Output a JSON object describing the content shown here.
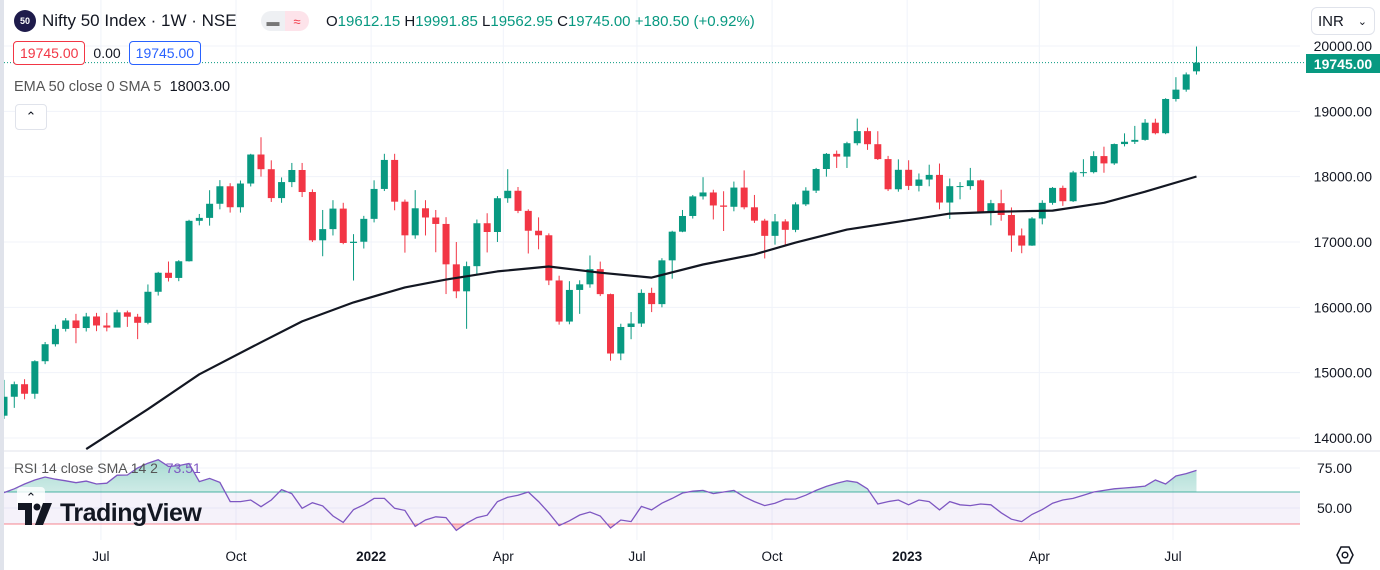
{
  "header": {
    "symbol_badge": "50",
    "title": "Nifty 50 Index · 1W · NSE",
    "ohlc": {
      "o_label": "O",
      "o": "19612.15",
      "h_label": "H",
      "h": "19991.85",
      "l_label": "L",
      "l": "19562.95",
      "c_label": "C",
      "c": "19745.00",
      "change": "+180.50 (+0.92%)"
    },
    "sell_price": "19745.00",
    "spread": "0.00",
    "buy_price": "19745.00",
    "currency": "INR"
  },
  "indicators": {
    "ema_label": "EMA 50 close 0 SMA 5",
    "ema_value": "18003.00",
    "rsi_label": "RSI 14 close SMA 14 2",
    "rsi_value": "73.51"
  },
  "logo_text": "TradingView",
  "last_price_label": "19745.00",
  "colors": {
    "up": "#089981",
    "down": "#f23645",
    "ema": "#131722",
    "rsi": "#7e57c2",
    "rsi_upper": "#089981",
    "rsi_lower": "#f23645"
  },
  "icons": {
    "collapse": "chevron-up-icon",
    "currency_dropdown": "chevron-down-icon",
    "settings": "settings-hexagon-icon"
  },
  "chart_data": {
    "type": "candlestick",
    "interval": "1W",
    "price_axis": {
      "ticks": [
        "14000.00",
        "15000.00",
        "16000.00",
        "17000.00",
        "18000.00",
        "19000.00",
        "20000.00"
      ],
      "ylim": [
        13900,
        20250
      ]
    },
    "rsi_axis": {
      "ticks": [
        "50.00",
        "75.00"
      ],
      "upper_band": 60,
      "lower_band": 40
    },
    "time_axis": [
      {
        "label": "Jul",
        "date": "2021-07-01"
      },
      {
        "label": "Oct",
        "date": "2021-10-01"
      },
      {
        "label": "2022",
        "date": "2022-01-01"
      },
      {
        "label": "Apr",
        "date": "2022-04-01"
      },
      {
        "label": "Jul",
        "date": "2022-07-01"
      },
      {
        "label": "Oct",
        "date": "2022-10-01"
      },
      {
        "label": "2023",
        "date": "2023-01-01"
      },
      {
        "label": "Apr",
        "date": "2023-04-01"
      },
      {
        "label": "Jul",
        "date": "2023-07-01"
      }
    ],
    "candles_fields": [
      "week",
      "open",
      "high",
      "low",
      "close"
    ],
    "candles": [
      [
        "2021-04-26",
        14341,
        14890,
        14292,
        14631
      ],
      [
        "2021-05-03",
        14631,
        14863,
        14461,
        14823
      ],
      [
        "2021-05-10",
        14823,
        14900,
        14592,
        14677
      ],
      [
        "2021-05-17",
        14677,
        15190,
        14600,
        15175
      ],
      [
        "2021-05-24",
        15175,
        15469,
        15130,
        15435
      ],
      [
        "2021-05-31",
        15435,
        15733,
        15400,
        15670
      ],
      [
        "2021-06-07",
        15670,
        15835,
        15630,
        15799
      ],
      [
        "2021-06-14",
        15799,
        15900,
        15450,
        15683
      ],
      [
        "2021-06-21",
        15683,
        15915,
        15630,
        15860
      ],
      [
        "2021-06-28",
        15860,
        15915,
        15635,
        15722
      ],
      [
        "2021-07-05",
        15722,
        15915,
        15632,
        15690
      ],
      [
        "2021-07-12",
        15690,
        15962,
        15700,
        15923
      ],
      [
        "2021-07-19",
        15923,
        15950,
        15700,
        15856
      ],
      [
        "2021-07-26",
        15856,
        15900,
        15513,
        15763
      ],
      [
        "2021-08-02",
        15763,
        16350,
        15740,
        16238
      ],
      [
        "2021-08-09",
        16238,
        16543,
        16180,
        16529
      ],
      [
        "2021-08-16",
        16529,
        16701,
        16395,
        16450
      ],
      [
        "2021-08-23",
        16450,
        16722,
        16400,
        16705
      ],
      [
        "2021-08-30",
        16705,
        17340,
        16700,
        17324
      ],
      [
        "2021-09-06",
        17324,
        17429,
        17255,
        17369
      ],
      [
        "2021-09-13",
        17369,
        17793,
        17250,
        17585
      ],
      [
        "2021-09-20",
        17585,
        17947,
        17500,
        17853
      ],
      [
        "2021-09-27",
        17853,
        17900,
        17450,
        17532
      ],
      [
        "2021-10-04",
        17532,
        17941,
        17450,
        17895
      ],
      [
        "2021-10-11",
        17895,
        18350,
        17850,
        18339
      ],
      [
        "2021-10-18",
        18339,
        18604,
        18000,
        18114
      ],
      [
        "2021-10-25",
        18114,
        18250,
        17613,
        17672
      ],
      [
        "2021-11-01",
        17672,
        17988,
        17600,
        17917
      ],
      [
        "2021-11-08",
        17917,
        18210,
        17840,
        18102
      ],
      [
        "2021-11-15",
        18102,
        18210,
        17688,
        17765
      ],
      [
        "2021-11-22",
        17765,
        17805,
        17000,
        17026
      ],
      [
        "2021-11-29",
        17026,
        17490,
        16782,
        17197
      ],
      [
        "2021-12-06",
        17197,
        17640,
        17100,
        17511
      ],
      [
        "2021-12-13",
        17511,
        17600,
        16966,
        16985
      ],
      [
        "2021-12-20",
        16985,
        17120,
        16410,
        17004
      ],
      [
        "2021-12-27",
        17004,
        17400,
        16900,
        17354
      ],
      [
        "2022-01-03",
        17354,
        17944,
        17300,
        17812
      ],
      [
        "2022-01-10",
        17812,
        18350,
        17780,
        18256
      ],
      [
        "2022-01-17",
        18256,
        18350,
        17485,
        17617
      ],
      [
        "2022-01-24",
        17617,
        17650,
        16837,
        17102
      ],
      [
        "2022-01-31",
        17102,
        17794,
        17050,
        17516
      ],
      [
        "2022-02-07",
        17516,
        17640,
        17100,
        17375
      ],
      [
        "2022-02-14",
        17375,
        17490,
        16843,
        17276
      ],
      [
        "2022-02-21",
        17276,
        17380,
        16203,
        16658
      ],
      [
        "2022-02-28",
        16658,
        17000,
        16140,
        16245
      ],
      [
        "2022-03-07",
        16245,
        16700,
        15671,
        16630
      ],
      [
        "2022-03-14",
        16630,
        17344,
        16500,
        17287
      ],
      [
        "2022-03-21",
        17287,
        17440,
        16840,
        17153
      ],
      [
        "2022-03-28",
        17153,
        17703,
        17000,
        17670
      ],
      [
        "2022-04-04",
        17670,
        18114,
        17600,
        17784
      ],
      [
        "2022-04-11",
        17784,
        17842,
        17442,
        17476
      ],
      [
        "2022-04-18",
        17476,
        17500,
        16824,
        17172
      ],
      [
        "2022-04-25",
        17172,
        17377,
        16888,
        17103
      ],
      [
        "2022-05-02",
        17103,
        17132,
        16340,
        16411
      ],
      [
        "2022-05-09",
        16411,
        16484,
        15735,
        15782
      ],
      [
        "2022-05-16",
        15782,
        16400,
        15740,
        16266
      ],
      [
        "2022-05-23",
        16266,
        16414,
        15900,
        16352
      ],
      [
        "2022-05-30",
        16352,
        16794,
        16300,
        16584
      ],
      [
        "2022-06-06",
        16584,
        16700,
        16172,
        16202
      ],
      [
        "2022-06-13",
        16202,
        16210,
        15183,
        15293
      ],
      [
        "2022-06-20",
        15293,
        15749,
        15191,
        15699
      ],
      [
        "2022-06-27",
        15699,
        15928,
        15512,
        15752
      ],
      [
        "2022-07-04",
        15752,
        16275,
        15700,
        16221
      ],
      [
        "2022-07-11",
        16221,
        16300,
        15927,
        16049
      ],
      [
        "2022-07-18",
        16049,
        16752,
        16000,
        16719
      ],
      [
        "2022-07-25",
        16719,
        17172,
        16438,
        17158
      ],
      [
        "2022-08-01",
        17158,
        17490,
        17150,
        17398
      ],
      [
        "2022-08-08",
        17398,
        17719,
        17359,
        17698
      ],
      [
        "2022-08-15",
        17698,
        17992,
        17650,
        17758
      ],
      [
        "2022-08-22",
        17758,
        17800,
        17345,
        17559
      ],
      [
        "2022-08-29",
        17559,
        17777,
        17168,
        17539
      ],
      [
        "2022-09-05",
        17539,
        17925,
        17470,
        17833
      ],
      [
        "2022-09-12",
        17833,
        18096,
        17500,
        17531
      ],
      [
        "2022-09-19",
        17531,
        17720,
        17292,
        17327
      ],
      [
        "2022-09-26",
        17327,
        17355,
        16748,
        17094
      ],
      [
        "2022-10-03",
        17094,
        17428,
        16960,
        17315
      ],
      [
        "2022-10-10",
        17315,
        17348,
        16950,
        17186
      ],
      [
        "2022-10-17",
        17186,
        17607,
        17150,
        17576
      ],
      [
        "2022-10-24",
        17576,
        17838,
        17550,
        17786
      ],
      [
        "2022-10-31",
        17786,
        18134,
        17750,
        18117
      ],
      [
        "2022-11-07",
        18117,
        18362,
        18000,
        18349
      ],
      [
        "2022-11-14",
        18349,
        18400,
        18133,
        18307
      ],
      [
        "2022-11-21",
        18307,
        18534,
        18133,
        18512
      ],
      [
        "2022-11-28",
        18512,
        18888,
        18480,
        18697
      ],
      [
        "2022-12-05",
        18697,
        18750,
        18410,
        18497
      ],
      [
        "2022-12-12",
        18497,
        18696,
        18255,
        18269
      ],
      [
        "2022-12-19",
        18269,
        18318,
        17780,
        17807
      ],
      [
        "2022-12-26",
        17807,
        18265,
        17770,
        18105
      ],
      [
        "2023-01-02",
        18105,
        18251,
        17795,
        17859
      ],
      [
        "2023-01-09",
        17859,
        18049,
        17774,
        17956
      ],
      [
        "2023-01-16",
        17956,
        18183,
        17853,
        18027
      ],
      [
        "2023-01-23",
        18027,
        18201,
        17500,
        17604
      ],
      [
        "2023-01-30",
        17604,
        17972,
        17353,
        17854
      ],
      [
        "2023-02-06",
        17854,
        17917,
        17653,
        17856
      ],
      [
        "2023-02-13",
        17856,
        18134,
        17800,
        17944
      ],
      [
        "2023-02-20",
        17944,
        17954,
        17455,
        17466
      ],
      [
        "2023-02-27",
        17466,
        17645,
        17255,
        17594
      ],
      [
        "2023-03-06",
        17594,
        17800,
        17325,
        17413
      ],
      [
        "2023-03-13",
        17413,
        17529,
        16850,
        17100
      ],
      [
        "2023-03-20",
        17100,
        17207,
        16828,
        16945
      ],
      [
        "2023-03-27",
        16945,
        17381,
        16940,
        17360
      ],
      [
        "2023-04-03",
        17360,
        17639,
        17270,
        17599
      ],
      [
        "2023-04-10",
        17599,
        17842,
        17570,
        17828
      ],
      [
        "2023-04-17",
        17828,
        17863,
        17553,
        17624
      ],
      [
        "2023-04-24",
        17624,
        18089,
        17612,
        18065
      ],
      [
        "2023-05-01",
        18065,
        18267,
        18000,
        18069
      ],
      [
        "2023-05-08",
        18069,
        18389,
        18050,
        18315
      ],
      [
        "2023-05-15",
        18315,
        18459,
        18060,
        18203
      ],
      [
        "2023-05-22",
        18203,
        18508,
        18180,
        18499
      ],
      [
        "2023-05-29",
        18499,
        18663,
        18463,
        18534
      ],
      [
        "2023-06-05",
        18534,
        18777,
        18500,
        18563
      ],
      [
        "2023-06-12",
        18563,
        18881,
        18550,
        18826
      ],
      [
        "2023-06-19",
        18826,
        18887,
        18647,
        18665
      ],
      [
        "2023-06-26",
        18665,
        19201,
        18650,
        19189
      ],
      [
        "2023-07-03",
        19189,
        19523,
        19150,
        19332
      ],
      [
        "2023-07-10",
        19332,
        19595,
        19300,
        19565
      ],
      [
        "2023-07-17",
        19612.15,
        19991.85,
        19562.95,
        19745.0
      ]
    ],
    "ema50_smoothed": [
      [
        "2021-06-21",
        13830
      ],
      [
        "2021-08-02",
        14440
      ],
      [
        "2021-09-06",
        14975
      ],
      [
        "2021-10-18",
        15465
      ],
      [
        "2021-11-15",
        15785
      ],
      [
        "2021-12-20",
        16075
      ],
      [
        "2022-01-24",
        16305
      ],
      [
        "2022-02-21",
        16425
      ],
      [
        "2022-03-28",
        16550
      ],
      [
        "2022-05-02",
        16625
      ],
      [
        "2022-06-06",
        16530
      ],
      [
        "2022-07-11",
        16455
      ],
      [
        "2022-08-15",
        16655
      ],
      [
        "2022-09-19",
        16810
      ],
      [
        "2022-10-17",
        16990
      ],
      [
        "2022-11-21",
        17190
      ],
      [
        "2022-12-26",
        17310
      ],
      [
        "2023-01-30",
        17435
      ],
      [
        "2023-03-06",
        17465
      ],
      [
        "2023-04-10",
        17480
      ],
      [
        "2023-05-15",
        17600
      ],
      [
        "2023-06-12",
        17770
      ],
      [
        "2023-07-17",
        18003
      ]
    ],
    "rsi14": [
      59.6,
      62,
      65,
      67.5,
      69.4,
      68,
      67,
      65.8,
      66.8,
      65,
      65.5,
      70.5,
      70.6,
      75,
      78,
      80.2,
      76,
      76.5,
      77.8,
      66.5,
      68.5,
      66,
      54,
      54,
      55,
      50.8,
      55,
      61.5,
      59,
      49.8,
      53.3,
      51.3,
      45,
      41,
      49,
      52,
      56,
      56,
      49.8,
      48.5,
      38.5,
      42.5,
      44.5,
      44,
      36,
      40.5,
      44,
      45.5,
      54,
      56.7,
      58,
      60,
      54,
      47,
      39,
      42,
      45.6,
      47.5,
      45,
      37.5,
      42.5,
      41.5,
      51,
      48.8,
      53,
      56,
      59.4,
      60.5,
      61,
      59,
      60,
      61,
      57,
      54,
      51.5,
      53,
      55.5,
      55.6,
      58,
      61,
      63.5,
      65.5,
      67,
      66,
      62,
      52.5,
      54,
      55,
      52,
      55,
      54,
      48.8,
      54,
      52,
      51.5,
      52.5,
      52,
      47,
      43,
      41.5,
      46,
      49,
      53,
      55,
      56,
      58,
      60,
      61,
      62,
      62.5,
      63,
      63.7,
      67.5,
      65,
      70,
      71.5,
      73.51
    ]
  }
}
